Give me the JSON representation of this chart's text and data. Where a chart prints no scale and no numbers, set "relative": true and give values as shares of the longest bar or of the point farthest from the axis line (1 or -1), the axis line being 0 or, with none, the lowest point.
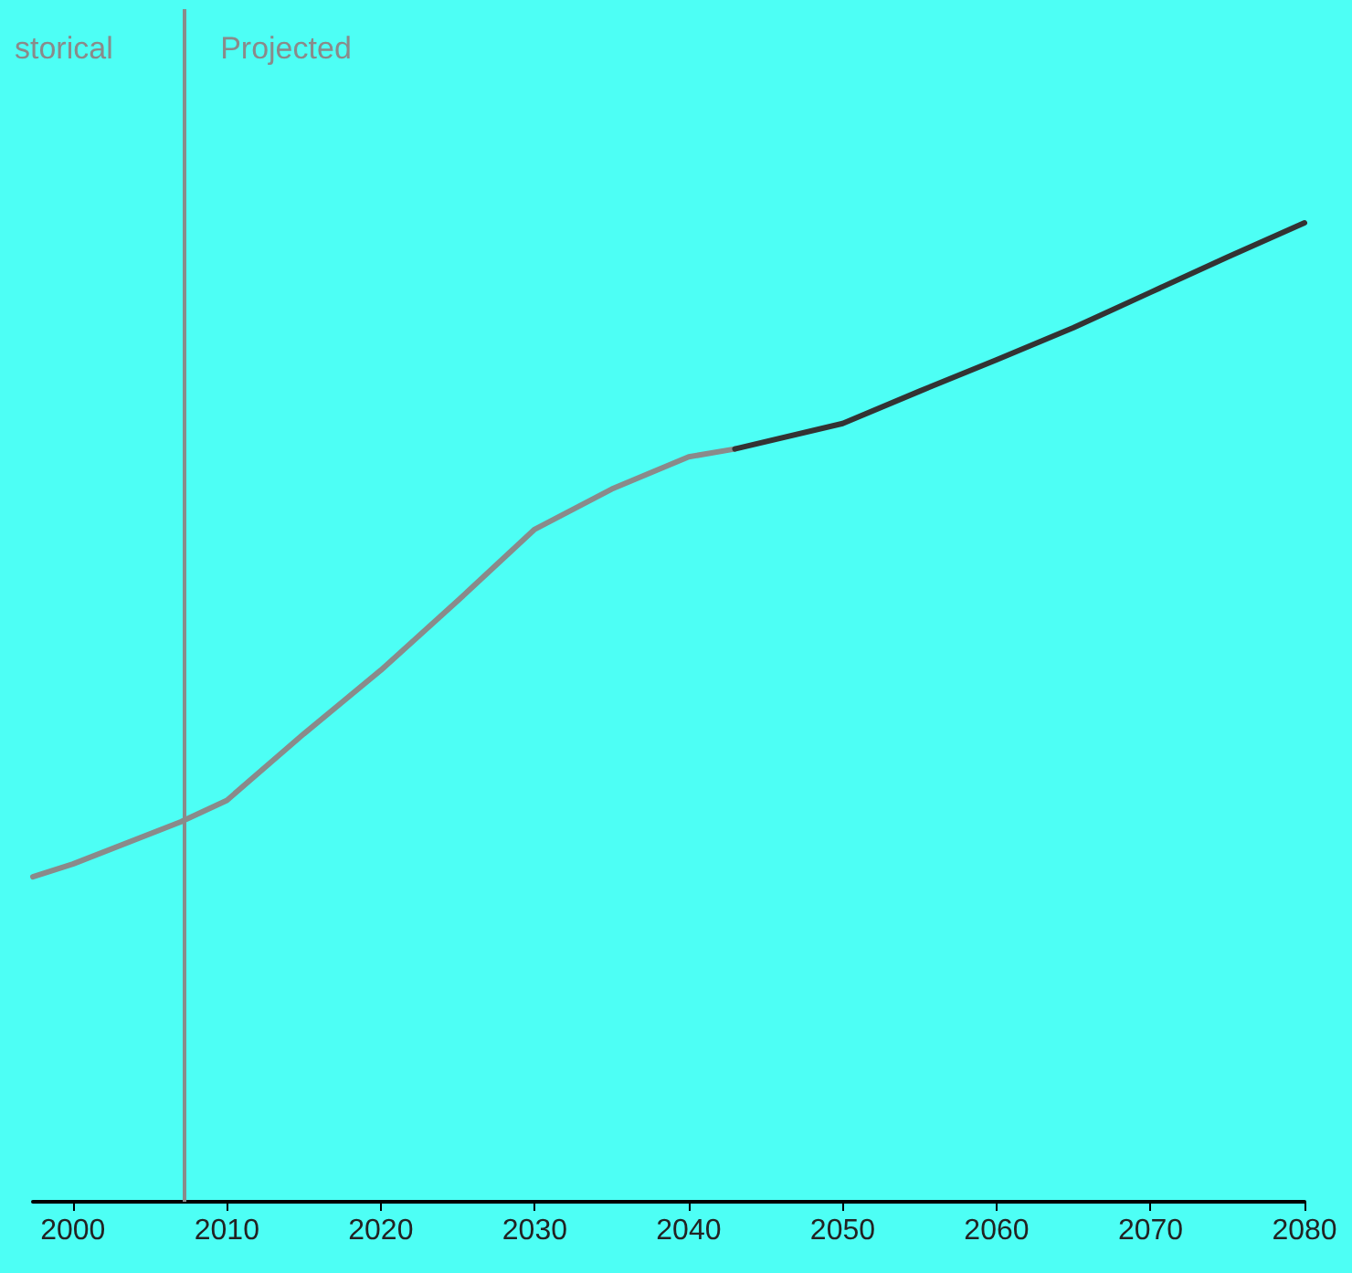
{
  "chart_data": {
    "type": "line",
    "relative": true,
    "xlim": [
      1997.4,
      2080
    ],
    "xticks": [
      2000,
      2010,
      2020,
      2030,
      2040,
      2050,
      2060,
      2070,
      2080
    ],
    "marker": "none",
    "line_style": "solid",
    "series": [
      {
        "color": "#8a8a8a",
        "x": [
          1997.4,
          2000,
          2007,
          2010,
          2015,
          2020,
          2025,
          2030,
          2035,
          2040,
          2043
        ],
        "values": [
          0.332,
          0.345,
          0.388,
          0.41,
          0.478,
          0.543,
          0.614,
          0.687,
          0.728,
          0.761,
          0.769
        ]
      },
      {
        "color": "#333333",
        "x": [
          2043,
          2050,
          2055,
          2060,
          2065,
          2070,
          2075,
          2080
        ],
        "values": [
          0.769,
          0.795,
          0.828,
          0.86,
          0.893,
          0.929,
          0.965,
          1
        ]
      }
    ],
    "ref_lines": [
      {
        "axis": "x",
        "value": 2007.2,
        "color": "#8a8a8a",
        "line_style": "solid"
      }
    ],
    "annotations": [
      "storical",
      "Projected"
    ]
  }
}
